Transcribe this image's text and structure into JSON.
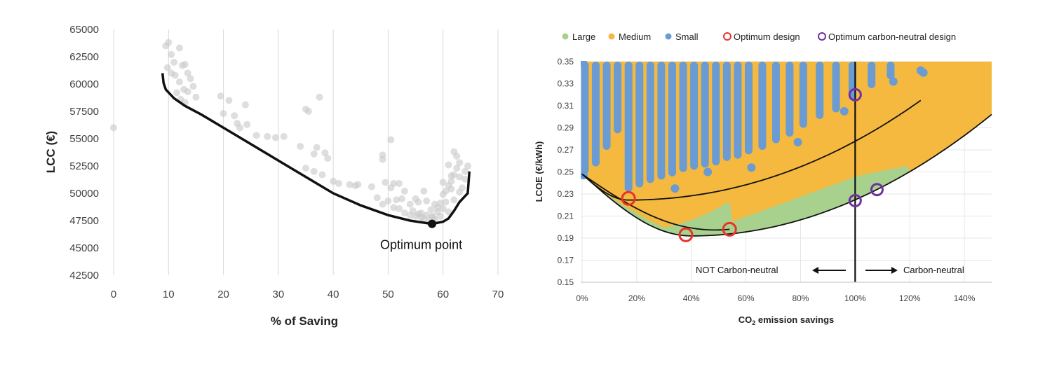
{
  "chart_data": [
    {
      "type": "scatter",
      "title": "",
      "xlabel": "% of Saving",
      "ylabel": "LCC (€)",
      "xlim": [
        0,
        70
      ],
      "ylim": [
        42500,
        65000
      ],
      "xticks": [
        "0",
        "10",
        "20",
        "30",
        "40",
        "50",
        "60",
        "70"
      ],
      "yticks": [
        "42500",
        "45000",
        "47500",
        "50000",
        "52500",
        "55000",
        "57500",
        "60000",
        "62500",
        "65000"
      ],
      "grid": "vertical",
      "scatter_points": [
        [
          0,
          56000
        ],
        [
          9.5,
          63500
        ],
        [
          10,
          63800
        ],
        [
          10.5,
          62700
        ],
        [
          11,
          62000
        ],
        [
          12,
          63300
        ],
        [
          9.8,
          61500
        ],
        [
          10.5,
          61000
        ],
        [
          11.2,
          60800
        ],
        [
          12.5,
          61700
        ],
        [
          13,
          61800
        ],
        [
          13.5,
          61000
        ],
        [
          12,
          60200
        ],
        [
          14,
          60500
        ],
        [
          14.5,
          59800
        ],
        [
          12.8,
          59500
        ],
        [
          13.5,
          59300
        ],
        [
          15,
          58800
        ],
        [
          11.5,
          59200
        ],
        [
          12.2,
          58600
        ],
        [
          13,
          58300
        ],
        [
          19.5,
          58900
        ],
        [
          20,
          57300
        ],
        [
          21,
          58500
        ],
        [
          22,
          57100
        ],
        [
          24,
          58100
        ],
        [
          22.5,
          56400
        ],
        [
          23,
          56000
        ],
        [
          24.3,
          56300
        ],
        [
          26,
          55300
        ],
        [
          28,
          55200
        ],
        [
          29.5,
          55100
        ],
        [
          31,
          55200
        ],
        [
          35,
          57700
        ],
        [
          35.5,
          57500
        ],
        [
          37.5,
          58800
        ],
        [
          34,
          54300
        ],
        [
          36.5,
          53600
        ],
        [
          37,
          54200
        ],
        [
          38.5,
          53700
        ],
        [
          39,
          53200
        ],
        [
          35,
          52300
        ],
        [
          36.5,
          52000
        ],
        [
          38,
          51700
        ],
        [
          40,
          51100
        ],
        [
          41,
          50900
        ],
        [
          43,
          50800
        ],
        [
          44,
          50700
        ],
        [
          44.5,
          50800
        ],
        [
          47,
          50600
        ],
        [
          49,
          53500
        ],
        [
          49,
          53100
        ],
        [
          50.5,
          54900
        ],
        [
          49.5,
          51000
        ],
        [
          50.5,
          50500
        ],
        [
          51,
          50900
        ],
        [
          48,
          49600
        ],
        [
          49,
          49000
        ],
        [
          50,
          49300
        ],
        [
          51,
          48700
        ],
        [
          52,
          48600
        ],
        [
          52.5,
          49500
        ],
        [
          53,
          48200
        ],
        [
          54,
          48000
        ],
        [
          54.5,
          48400
        ],
        [
          55,
          47900
        ],
        [
          55.5,
          48100
        ],
        [
          56,
          48200
        ],
        [
          56.5,
          47700
        ],
        [
          57,
          48000
        ],
        [
          57.5,
          47500
        ],
        [
          58,
          47900
        ],
        [
          58.5,
          47600
        ],
        [
          59,
          48300
        ],
        [
          59.5,
          49100
        ],
        [
          60,
          49900
        ],
        [
          60.5,
          50200
        ],
        [
          61,
          50700
        ],
        [
          61.5,
          51100
        ],
        [
          62,
          51700
        ],
        [
          62.5,
          52300
        ],
        [
          63,
          52800
        ],
        [
          62,
          53800
        ],
        [
          62.5,
          53400
        ],
        [
          61,
          52600
        ],
        [
          61.5,
          50400
        ],
        [
          60.5,
          49200
        ],
        [
          61,
          48300
        ],
        [
          62,
          49400
        ],
        [
          63,
          50100
        ],
        [
          63.5,
          50500
        ],
        [
          64,
          51300
        ],
        [
          64,
          52000
        ],
        [
          64.5,
          52500
        ],
        [
          59,
          48700
        ],
        [
          58.2,
          47800
        ],
        [
          57.8,
          48500
        ],
        [
          55.5,
          49200
        ],
        [
          54,
          49000
        ],
        [
          56.5,
          50200
        ],
        [
          53,
          50200
        ],
        [
          60,
          51000
        ],
        [
          61.5,
          51600
        ],
        [
          63,
          51500
        ],
        [
          57,
          49300
        ],
        [
          55,
          49500
        ],
        [
          52,
          50900
        ],
        [
          51.5,
          49400
        ],
        [
          58.5,
          49000
        ],
        [
          60,
          48600
        ],
        [
          59.5,
          47900
        ],
        [
          56,
          47800
        ]
      ],
      "pareto_front": [
        [
          8.9,
          61000
        ],
        [
          9.1,
          60100
        ],
        [
          9.5,
          59500
        ],
        [
          11,
          58700
        ],
        [
          13,
          58000
        ],
        [
          16,
          57200
        ],
        [
          20,
          56000
        ],
        [
          25,
          54500
        ],
        [
          30,
          53000
        ],
        [
          35,
          51500
        ],
        [
          40,
          50000
        ],
        [
          45,
          48900
        ],
        [
          50,
          48000
        ],
        [
          54,
          47500
        ],
        [
          58,
          47200
        ],
        [
          60,
          47400
        ],
        [
          61,
          47700
        ],
        [
          62,
          48400
        ],
        [
          63,
          49200
        ],
        [
          64.5,
          50000
        ],
        [
          64.8,
          52000
        ]
      ],
      "optimum_point": {
        "x": 58,
        "y": 47200,
        "label": "Optimum point"
      }
    },
    {
      "type": "scatter",
      "title": "",
      "xlabel": "CO2 emission savings",
      "ylabel": "LCOE (€/kWh)",
      "xlim": [
        0,
        150
      ],
      "ylim": [
        0.15,
        0.35
      ],
      "xticks": [
        "0%",
        "20%",
        "40%",
        "60%",
        "80%",
        "100%",
        "120%",
        "140%"
      ],
      "yticks": [
        "0.15",
        "0.17",
        "0.19",
        "0.21",
        "0.23",
        "0.25",
        "0.27",
        "0.29",
        "0.31",
        "0.33",
        "0.35"
      ],
      "legend": [
        "Large",
        "Medium",
        "Small",
        "Optimum design",
        "Optimum carbon-neutral design"
      ],
      "legend_position": "top",
      "colors": {
        "Large": "#a9d18e",
        "Medium": "#f4b93e",
        "Small": "#6a9bd3",
        "Optimum": "#e8322a",
        "CarbonNeutral": "#7030a0"
      },
      "optimum_designs": [
        [
          17,
          0.226
        ],
        [
          38,
          0.193
        ],
        [
          54,
          0.198
        ]
      ],
      "carbon_neutral_designs": [
        [
          100,
          0.32
        ],
        [
          100,
          0.224
        ],
        [
          108,
          0.234
        ]
      ],
      "carbon_neutral_line_x": 100,
      "small_columns": [
        [
          1,
          0.248,
          0.35
        ],
        [
          5,
          0.255,
          0.35
        ],
        [
          9,
          0.27,
          0.35
        ],
        [
          13,
          0.285,
          0.35
        ],
        [
          17,
          0.232,
          0.35
        ],
        [
          21,
          0.236,
          0.35
        ],
        [
          25,
          0.24,
          0.35
        ],
        [
          29,
          0.243,
          0.35
        ],
        [
          33,
          0.246,
          0.35
        ],
        [
          37,
          0.25,
          0.35
        ],
        [
          41,
          0.252,
          0.35
        ],
        [
          45,
          0.254,
          0.35
        ],
        [
          49,
          0.256,
          0.35
        ],
        [
          53,
          0.26,
          0.35
        ],
        [
          57,
          0.262,
          0.35
        ],
        [
          61,
          0.266,
          0.35
        ],
        [
          66,
          0.27,
          0.35
        ],
        [
          71,
          0.276,
          0.35
        ],
        [
          76,
          0.282,
          0.35
        ],
        [
          81,
          0.29,
          0.35
        ],
        [
          87,
          0.298,
          0.35
        ],
        [
          93,
          0.304,
          0.35
        ],
        [
          99,
          0.315,
          0.35
        ],
        [
          106,
          0.326,
          0.35
        ],
        [
          113,
          0.334,
          0.35
        ]
      ],
      "annotations": {
        "left": "NOT Carbon-neutral",
        "right": "Carbon-neutral"
      }
    }
  ]
}
